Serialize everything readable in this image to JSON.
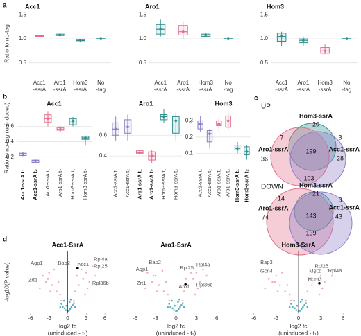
{
  "chart_data": [
    {
      "type": "box",
      "panel": "a",
      "title": "Acc1",
      "ylabel": "Ratio to no-tag",
      "categories": [
        "Acc1-ssrA",
        "Aro1-ssrA",
        "Hom3-ssrA",
        "No-tag"
      ],
      "colors": [
        "#e0708c",
        "#2f8f8f",
        "#2f8f8f",
        "#2f8f8f"
      ],
      "boxes": [
        {
          "low": 1.04,
          "q1": 1.05,
          "median": 1.06,
          "q3": 1.07,
          "high": 1.08
        },
        {
          "low": 1.06,
          "q1": 1.07,
          "median": 1.08,
          "q3": 1.1,
          "high": 1.11
        },
        {
          "low": 0.95,
          "q1": 0.96,
          "median": 0.97,
          "q3": 0.99,
          "high": 1.0
        },
        {
          "low": 0.99,
          "q1": 0.995,
          "median": 1.0,
          "q3": 1.005,
          "high": 1.01
        }
      ],
      "ylim": [
        0.25,
        1.55
      ],
      "yticks": [
        0.5,
        {
          "value": 1,
          "label": "1.0"
        },
        1.5
      ],
      "grid": true
    },
    {
      "type": "box",
      "title": "Aro1",
      "categories": [
        "Acc1-ssrA",
        "Aro1-ssrA",
        "Hom3-ssrA",
        "No-tag"
      ],
      "colors": [
        "#2f8f8f",
        "#e0708c",
        "#2f8f8f",
        "#2f8f8f"
      ],
      "boxes": [
        {
          "low": 1.05,
          "q1": 1.1,
          "median": 1.2,
          "q3": 1.3,
          "high": 1.4
        },
        {
          "low": 1.0,
          "q1": 1.08,
          "median": 1.15,
          "q3": 1.28,
          "high": 1.35
        },
        {
          "low": 1.04,
          "q1": 1.05,
          "median": 1.08,
          "q3": 1.1,
          "high": 1.12
        },
        {
          "low": 0.99,
          "q1": 0.995,
          "median": 1.0,
          "q3": 1.005,
          "high": 1.01
        }
      ],
      "ylim": [
        0.25,
        1.55
      ],
      "yticks": [
        0.5,
        {
          "value": 1,
          "label": "1.0"
        },
        1.5
      ],
      "grid": true
    },
    {
      "type": "box",
      "title": "Hom3",
      "categories": [
        "Acc1-ssrA",
        "Aro1-ssrA",
        "Hom3-ssrA",
        "No-tag"
      ],
      "colors": [
        "#2f8f8f",
        "#2f8f8f",
        "#e0708c",
        "#2f8f8f"
      ],
      "boxes": [
        {
          "low": 0.85,
          "q1": 0.95,
          "median": 1.05,
          "q3": 1.12,
          "high": 1.15
        },
        {
          "low": 0.85,
          "q1": 0.92,
          "median": 0.97,
          "q3": 1.0,
          "high": 1.05
        },
        {
          "low": 0.68,
          "q1": 0.7,
          "median": 0.75,
          "q3": 0.82,
          "high": 0.9
        },
        {
          "low": 0.99,
          "q1": 0.995,
          "median": 1.0,
          "q3": 1.005,
          "high": 1.01
        }
      ],
      "ylim": [
        0.25,
        1.55
      ],
      "yticks": [
        0.5,
        {
          "value": 1,
          "label": "1.0"
        },
        1.5
      ],
      "grid": true
    },
    {
      "type": "box",
      "panel": "b",
      "title": "Acc1",
      "ylabel": "Ratio to no-tag (uninduced)",
      "categories": [
        "Acc1-ssrA t₁",
        "Acc1-ssrA t₂",
        "Aro1-ssrA t₁",
        "Aro1-ssrA t₂",
        "Hom3-ssrA t₁",
        "Hom3-ssrA t₂"
      ],
      "bold": [
        0,
        1
      ],
      "colors": [
        "#8c7cc6",
        "#8c7cc6",
        "#e0708c",
        "#e0708c",
        "#2f8f8f",
        "#2f8f8f"
      ],
      "boxes": [
        {
          "low": 0.21,
          "q1": 0.22,
          "median": 0.24,
          "q3": 0.25,
          "high": 0.26
        },
        {
          "low": 0.12,
          "q1": 0.13,
          "median": 0.15,
          "q3": 0.16,
          "high": 0.17
        },
        {
          "low": 0.6,
          "q1": 0.65,
          "median": 0.7,
          "q3": 0.75,
          "high": 0.8
        },
        {
          "low": 0.53,
          "q1": 0.55,
          "median": 0.56,
          "q3": 0.58,
          "high": 0.6
        },
        {
          "low": 0.6,
          "q1": 0.62,
          "median": 0.67,
          "q3": 0.7,
          "high": 0.72
        },
        {
          "low": 0.35,
          "q1": 0.43,
          "median": 0.45,
          "q3": 0.47,
          "high": 0.48
        }
      ],
      "ylim": [
        0.08,
        0.82
      ],
      "yticks": [
        0.2,
        0.4,
        0.6
      ],
      "grid": true
    },
    {
      "type": "box",
      "title": "Aro1",
      "categories": [
        "Acc1-ssrA t₁",
        "Acc1-ssrA t₂",
        "Aro1-ssrA t₁",
        "Aro1-ssrA t₂",
        "Hom3-ssrA t₁",
        "Hom3-ssrA t₂"
      ],
      "bold": [
        2,
        3
      ],
      "colors": [
        "#8c7cc6",
        "#8c7cc6",
        "#e0708c",
        "#e0708c",
        "#2f8f8f",
        "#2f8f8f"
      ],
      "boxes": [
        {
          "low": 0.55,
          "q1": 0.6,
          "median": 0.66,
          "q3": 0.72,
          "high": 0.78
        },
        {
          "low": 0.55,
          "q1": 0.62,
          "median": 0.68,
          "q3": 0.75,
          "high": 0.8
        },
        {
          "low": 0.41,
          "q1": 0.42,
          "median": 0.43,
          "q3": 0.45,
          "high": 0.46
        },
        {
          "low": 0.33,
          "q1": 0.36,
          "median": 0.4,
          "q3": 0.44,
          "high": 0.46
        },
        {
          "low": 0.72,
          "q1": 0.75,
          "median": 0.78,
          "q3": 0.8,
          "high": 0.85
        },
        {
          "low": 0.55,
          "q1": 0.62,
          "median": 0.74,
          "q3": 0.78,
          "high": 0.82
        }
      ],
      "ylim": [
        0.3,
        0.85
      ],
      "yticks": [
        0.4,
        0.6
      ],
      "grid": true
    },
    {
      "type": "box",
      "title": "Hom3",
      "categories": [
        "Acc1-ssrA t₁",
        "Acc1-ssrA t₂",
        "Aro1-ssrA t₁",
        "Aro1-ssrA t₂",
        "Hom3-ssrA t₁",
        "Hom3-ssrA t₂"
      ],
      "bold": [
        4,
        5
      ],
      "colors": [
        "#8c7cc6",
        "#8c7cc6",
        "#e0708c",
        "#e0708c",
        "#2f8f8f",
        "#2f8f8f"
      ],
      "boxes": [
        {
          "low": 0.23,
          "q1": 0.25,
          "median": 0.28,
          "q3": 0.3,
          "high": 0.33
        },
        {
          "low": 0.13,
          "q1": 0.17,
          "median": 0.22,
          "q3": 0.24,
          "high": 0.25
        },
        {
          "low": 0.24,
          "q1": 0.27,
          "median": 0.28,
          "q3": 0.3,
          "high": 0.32
        },
        {
          "low": 0.24,
          "q1": 0.26,
          "median": 0.3,
          "q3": 0.33,
          "high": 0.36
        },
        {
          "low": 0.1,
          "q1": 0.12,
          "median": 0.13,
          "q3": 0.15,
          "high": 0.17
        },
        {
          "low": 0.06,
          "q1": 0.09,
          "median": 0.11,
          "q3": 0.14,
          "high": 0.15
        }
      ],
      "ylim": [
        0.02,
        0.37
      ],
      "yticks": [
        0.1,
        0.2,
        0.3
      ],
      "grid": true
    },
    {
      "type": "venn",
      "panel": "c",
      "label": "UP",
      "sets": [
        {
          "name": "Hom3-ssrA",
          "color": "#2f8f8f"
        },
        {
          "name": "Aro1-ssrA",
          "color": "#e0708c"
        },
        {
          "name": "Acc1-ssrA",
          "color": "#8c7cc6"
        }
      ],
      "counts": [
        20,
        7,
        3,
        36,
        28,
        199,
        103
      ]
    },
    {
      "type": "venn",
      "label": "DOWN",
      "sets": [
        {
          "name": "Hom3-ssrA",
          "color": "#2f8f8f"
        },
        {
          "name": "Aro1-ssrA",
          "color": "#e0708c"
        },
        {
          "name": "Acc1-ssrA",
          "color": "#8c7cc6"
        }
      ],
      "counts": [
        21,
        14,
        3,
        74,
        43,
        143,
        139
      ]
    },
    {
      "type": "scatter",
      "panel": "d",
      "title": "Acc1-SsrA",
      "ylabel": "-log10(P value)",
      "xlabel": [
        "log2 fc",
        "(uninduced - t₁)"
      ],
      "series": [
        {
          "color": "#f0a0b4",
          "x": [
            -4,
            -3.5,
            -3,
            -2.5,
            -2.2,
            -1.8,
            -1.5,
            -1.2,
            1.2,
            1.5,
            1.8,
            2.2,
            2.5,
            3,
            3.5,
            4,
            4.5,
            -4.5,
            2.8,
            -2.8,
            3.2,
            -3.2,
            1,
            -1
          ],
          "y": [
            6,
            5,
            6.5,
            4.5,
            7,
            3.5,
            5,
            3,
            3.5,
            6,
            4.5,
            7,
            5.5,
            6.5,
            5,
            7.5,
            6,
            4,
            3,
            3.5,
            4,
            5.5,
            2,
            2
          ]
        },
        {
          "color": "#3a9fb5",
          "x": [
            -1,
            -0.8,
            -0.5,
            -0.3,
            0,
            0.2,
            0.4,
            0.6,
            0.8,
            1,
            -0.6,
            0.5,
            -0.2,
            0.3,
            1.2,
            -1.2
          ],
          "y": [
            1.5,
            1,
            0.8,
            0.5,
            0.3,
            0.4,
            0.7,
            1,
            1.3,
            1.6,
            2,
            2.2,
            1.2,
            1.8,
            1,
            1
          ]
        }
      ],
      "highlight": {
        "x": 1.6,
        "y": 7.2
      },
      "annotations": [
        {
          "text": "Agp1",
          "x": -5,
          "y": 8
        },
        {
          "text": "Bap2",
          "x": -0.6,
          "y": 8
        },
        {
          "text": "Acc1",
          "x": 2.5,
          "y": 7.8
        },
        {
          "text": "Zrt1",
          "x": -5.6,
          "y": 5.3
        },
        {
          "text": "Rpl4a",
          "x": 5.3,
          "y": 8.6
        },
        {
          "text": "Rpl25",
          "x": 5.3,
          "y": 7.5
        },
        {
          "text": "Rpl36b",
          "x": 5.3,
          "y": 4.8
        }
      ],
      "xlim": [
        -7,
        7
      ],
      "xticks": [
        -6,
        -3,
        0,
        3,
        6
      ],
      "ylim": [
        0,
        10
      ],
      "vline": 0
    },
    {
      "type": "scatter",
      "title": "Aro1-SsrA",
      "xlabel": [
        "log2 fc",
        "(uninduced - t₁)"
      ],
      "series": [
        {
          "color": "#f0a0b4",
          "x": [
            -4.2,
            -3.5,
            -3,
            -2.5,
            -2,
            -1.8,
            -1.5,
            -1.2,
            1.2,
            1.5,
            1.8,
            2.2,
            2.5,
            3,
            3.5,
            4,
            4.5,
            -4.5,
            2.8,
            -2.8,
            3.2,
            -3.3,
            1,
            -1
          ],
          "y": [
            6.5,
            5,
            6,
            4.5,
            6.8,
            3.5,
            5,
            3,
            3.5,
            5.5,
            4.5,
            6.5,
            5.5,
            6.5,
            5,
            7,
            6,
            4,
            3,
            3.5,
            4,
            6,
            2,
            2
          ]
        },
        {
          "color": "#3a9fb5",
          "x": [
            -1,
            -0.8,
            -0.5,
            -0.3,
            0,
            0.2,
            0.4,
            0.6,
            0.8,
            1,
            -0.6,
            0.5,
            -0.2,
            0.3,
            1.2,
            -1.2
          ],
          "y": [
            1.5,
            1,
            0.8,
            0.5,
            0.3,
            0.4,
            0.7,
            1,
            1.3,
            1.6,
            2,
            2.2,
            1.2,
            1.8,
            1,
            1
          ]
        }
      ],
      "highlight": {
        "x": 1.4,
        "y": 4.6
      },
      "annotations": [
        {
          "text": "Bap2",
          "x": -3.1,
          "y": 8.1
        },
        {
          "text": "Agp1",
          "x": -5,
          "y": 7
        },
        {
          "text": "Rpl25",
          "x": 1.6,
          "y": 7.2
        },
        {
          "text": "Rpl4a",
          "x": 4,
          "y": 7.7
        },
        {
          "text": "Zrt1",
          "x": -5.1,
          "y": 4.8
        },
        {
          "text": "Aro1",
          "x": 1.2,
          "y": 4.2
        },
        {
          "text": "Rpl36b",
          "x": 4.2,
          "y": 4.5
        }
      ],
      "xlim": [
        -7,
        7
      ],
      "xticks": [
        -6,
        -3,
        0,
        3,
        6
      ],
      "ylim": [
        0,
        10
      ],
      "vline": 0
    },
    {
      "type": "scatter",
      "title": "Hom3-SsrA",
      "xlabel": [
        "log2 fc",
        "(uninduced - t₁)"
      ],
      "series": [
        {
          "color": "#f0a0b4",
          "x": [
            -4,
            -3.5,
            -3,
            -2.5,
            -2.2,
            -1.8,
            -1.5,
            -1.2,
            1.2,
            1.5,
            1.8,
            2.2,
            2.5,
            3,
            3.5,
            4,
            4.5,
            -4.5,
            2.8,
            -2.8,
            3.2,
            -3.2,
            1,
            -1
          ],
          "y": [
            5.5,
            5,
            6,
            4.5,
            6.5,
            3.5,
            4.5,
            3,
            3.5,
            5.5,
            4.5,
            6.5,
            5.5,
            6,
            5,
            7,
            6,
            4,
            3,
            3.5,
            4,
            5,
            2,
            2
          ]
        },
        {
          "color": "#3a9fb5",
          "x": [
            -1,
            -0.8,
            -0.5,
            -0.3,
            0,
            0.2,
            0.4,
            0.6,
            0.8,
            1,
            -0.6,
            0.5,
            -0.2,
            0.3,
            1.2,
            -1.2
          ],
          "y": [
            1.5,
            1,
            0.8,
            0.5,
            0.3,
            0.4,
            0.7,
            1,
            1.3,
            1.6,
            2,
            2.2,
            1.2,
            1.8,
            1,
            1
          ]
        }
      ],
      "highlight": {
        "x": 2.8,
        "y": 4.8
      },
      "annotations": [
        {
          "text": "Bap3",
          "x": -4.3,
          "y": 8.1
        },
        {
          "text": "Gcn4",
          "x": -4.3,
          "y": 6.7
        },
        {
          "text": "Rpl25",
          "x": 3.1,
          "y": 7.5
        },
        {
          "text": "Rpl4a",
          "x": 4.9,
          "y": 6.8
        },
        {
          "text": "Met2",
          "x": 2.2,
          "y": 6.7
        },
        {
          "text": "Hom3",
          "x": 2.2,
          "y": 5.4
        }
      ],
      "xlim": [
        -7,
        7
      ],
      "xticks": [
        -6,
        -3,
        0,
        3,
        6
      ],
      "ylim": [
        0,
        10
      ],
      "vline": 0
    }
  ]
}
